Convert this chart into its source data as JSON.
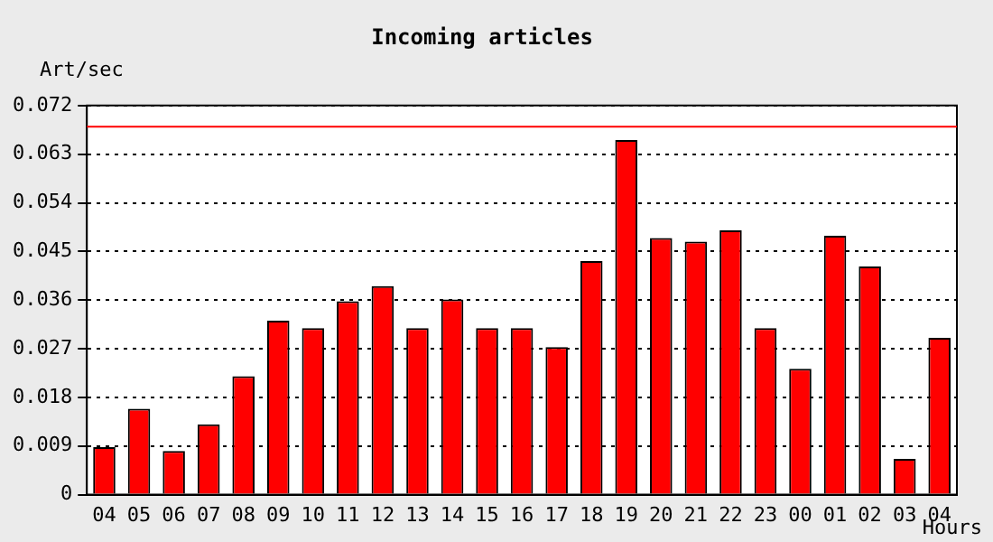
{
  "chart_data": {
    "type": "bar",
    "title": "Incoming articles",
    "xlabel": "Hours",
    "ylabel": "Art/sec",
    "categories": [
      "04",
      "05",
      "06",
      "07",
      "08",
      "09",
      "10",
      "11",
      "12",
      "13",
      "14",
      "15",
      "16",
      "17",
      "18",
      "19",
      "20",
      "21",
      "22",
      "23",
      "00",
      "01",
      "02",
      "03",
      "04"
    ],
    "series": [
      {
        "color": "#ff0000",
        "values": [
          0.0088,
          0.0159,
          0.0081,
          0.013,
          0.0219,
          0.0322,
          0.0308,
          0.0358,
          0.0386,
          0.0308,
          0.0361,
          0.0308,
          0.0308,
          0.0273,
          0.0432,
          0.0656,
          0.0475,
          0.0468,
          0.0489,
          0.0308,
          0.0233,
          0.0479,
          0.0422,
          0.0066,
          0.029
        ]
      }
    ],
    "ylim": [
      0,
      0.072
    ],
    "yticks": [
      0,
      0.009,
      0.018,
      0.027,
      0.036,
      0.045,
      0.054,
      0.063,
      0.072
    ],
    "ref_lines": [
      {
        "axis": "y",
        "value": 0.0681,
        "color": "#ff0000"
      }
    ],
    "grid": "y",
    "legend": false
  }
}
